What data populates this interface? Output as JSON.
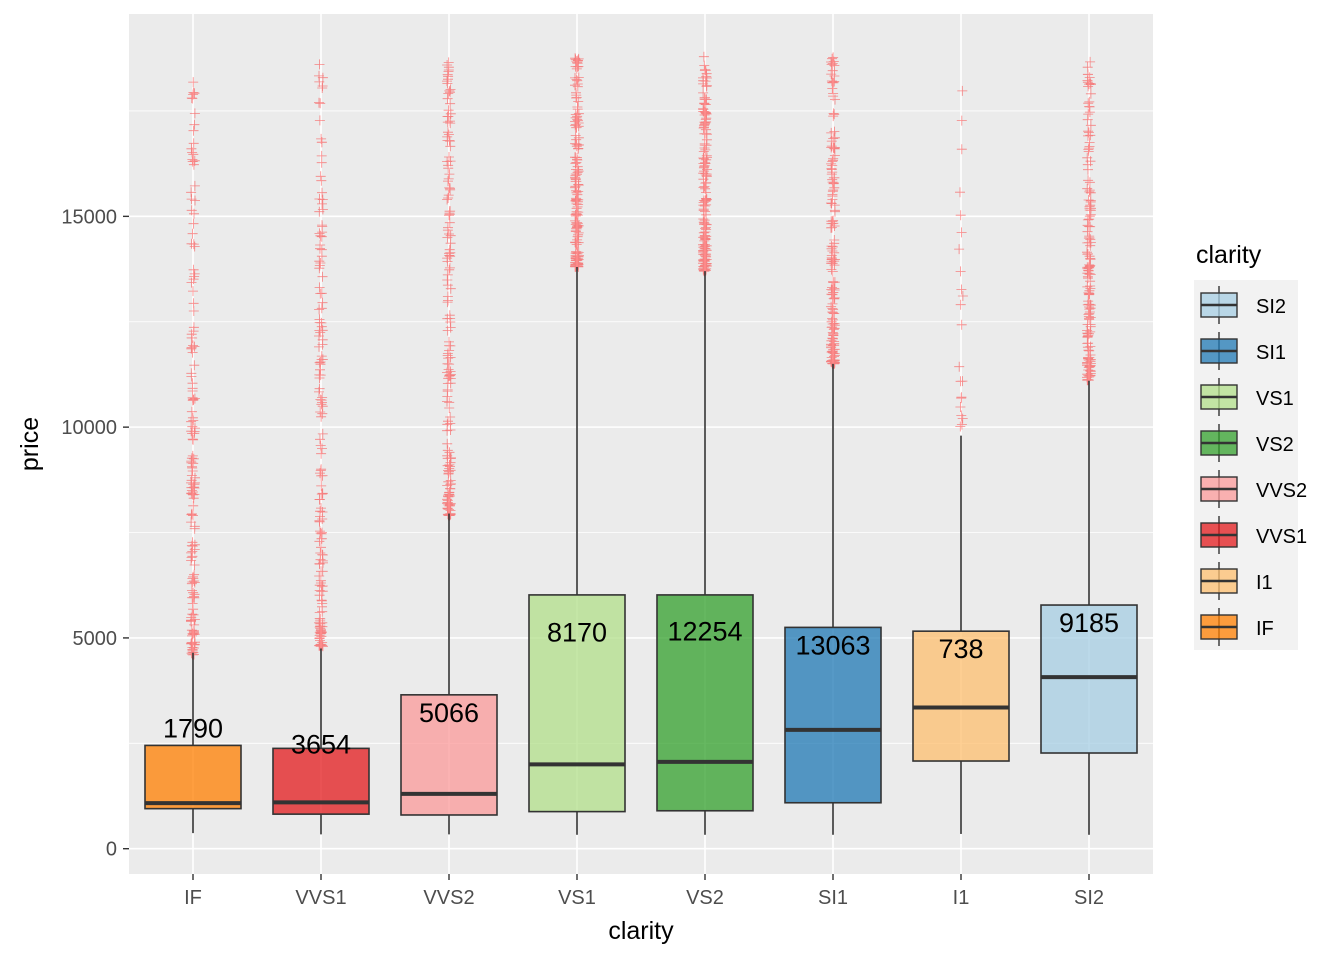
{
  "chart_data": {
    "type": "boxplot",
    "title": "",
    "xlabel": "clarity",
    "ylabel": "price",
    "ylim": [
      -600,
      19800
    ],
    "y_ticks": [
      0,
      5000,
      10000,
      15000
    ],
    "y_tick_labels": [
      "0",
      "5000",
      "10000",
      "15000"
    ],
    "categories": [
      "IF",
      "VVS1",
      "VVS2",
      "VS1",
      "VS2",
      "SI1",
      "I1",
      "SI2"
    ],
    "grid": true,
    "outlier_color": "#ff0000",
    "outlier_shape": "plus",
    "boxes": [
      {
        "category": "IF",
        "whisker_low": 370,
        "q1": 950,
        "median": 1080,
        "q3": 2450,
        "whisker_high": 4650,
        "count_label": "1790",
        "fill": "#ff7f00",
        "outlier_range": [
          4600,
          18800
        ]
      },
      {
        "category": "VVS1",
        "whisker_low": 340,
        "q1": 820,
        "median": 1100,
        "q3": 2380,
        "whisker_high": 4750,
        "count_label": "3654",
        "fill": "#e31a1c",
        "outlier_range": [
          4800,
          18800
        ]
      },
      {
        "category": "VVS2",
        "whisker_low": 340,
        "q1": 800,
        "median": 1300,
        "q3": 3650,
        "whisker_high": 7950,
        "count_label": "5066",
        "fill": "#fb9a99",
        "outlier_range": [
          7900,
          18800
        ]
      },
      {
        "category": "VS1",
        "whisker_low": 330,
        "q1": 880,
        "median": 2000,
        "q3": 6020,
        "whisker_high": 13800,
        "count_label": "8170",
        "fill": "#b2df8a",
        "outlier_range": [
          13800,
          18800
        ]
      },
      {
        "category": "VS2",
        "whisker_low": 330,
        "q1": 900,
        "median": 2060,
        "q3": 6020,
        "whisker_high": 13700,
        "count_label": "12254",
        "fill": "#33a02c",
        "outlier_range": [
          13700,
          18800
        ]
      },
      {
        "category": "SI1",
        "whisker_low": 330,
        "q1": 1090,
        "median": 2820,
        "q3": 5250,
        "whisker_high": 11500,
        "count_label": "13063",
        "fill": "#1f78b4",
        "outlier_range": [
          11500,
          18800
        ]
      },
      {
        "category": "I1",
        "whisker_low": 350,
        "q1": 2080,
        "median": 3350,
        "q3": 5160,
        "whisker_high": 9800,
        "count_label": "738",
        "fill": "#fdbf6f",
        "outlier_range": [
          9900,
          18600
        ]
      },
      {
        "category": "SI2",
        "whisker_low": 330,
        "q1": 2270,
        "median": 4070,
        "q3": 5780,
        "whisker_high": 11100,
        "count_label": "9185",
        "fill": "#a6cee3",
        "outlier_range": [
          11100,
          18800
        ]
      }
    ],
    "legend": {
      "title": "clarity",
      "position": "right",
      "items": [
        {
          "label": "SI2",
          "fill": "#a6cee3"
        },
        {
          "label": "SI1",
          "fill": "#1f78b4"
        },
        {
          "label": "VS1",
          "fill": "#b2df8a"
        },
        {
          "label": "VS2",
          "fill": "#33a02c"
        },
        {
          "label": "VVS2",
          "fill": "#fb9a99"
        },
        {
          "label": "VVS1",
          "fill": "#e31a1c"
        },
        {
          "label": "I1",
          "fill": "#fdbf6f"
        },
        {
          "label": "IF",
          "fill": "#ff7f00"
        }
      ]
    }
  }
}
